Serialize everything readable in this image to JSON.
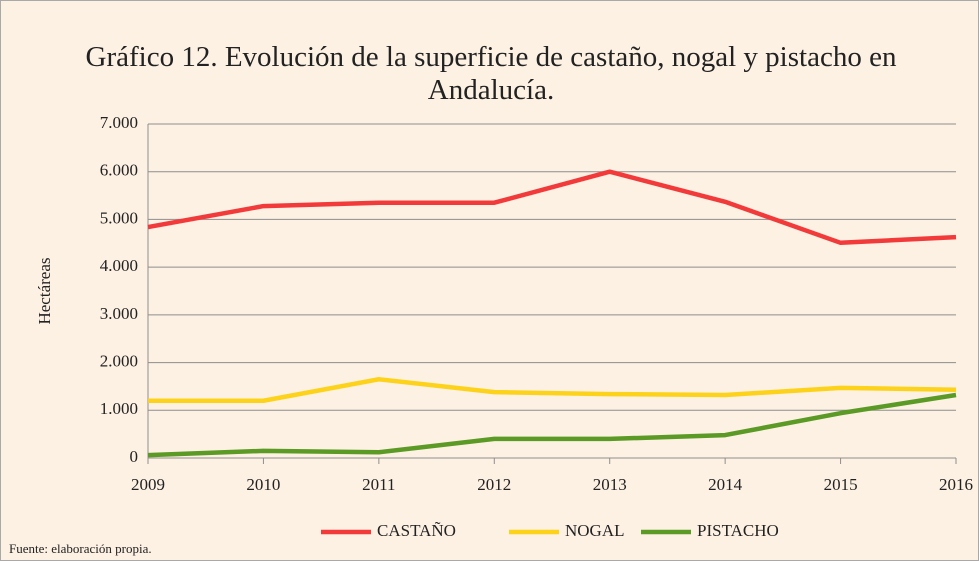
{
  "chart_data": {
    "type": "line",
    "title": "Gráfico 12. Evolución de la superficie de castaño, nogal y pistacho en Andalucía.",
    "ylabel": "Hectáreas",
    "source": "Fuente: elaboración propia.",
    "x": [
      2009,
      2010,
      2011,
      2012,
      2013,
      2014,
      2015,
      2016
    ],
    "xlim": [
      2009,
      2016
    ],
    "xticks": [
      2009,
      2010,
      2011,
      2012,
      2013,
      2014,
      2015,
      2016
    ],
    "ylim": [
      0,
      7000
    ],
    "yticks": [
      0,
      {
        "value": 1000,
        "label": "1.000"
      },
      {
        "value": 2000,
        "label": "2.000"
      },
      {
        "value": 3000,
        "label": "3.000"
      },
      {
        "value": 4000,
        "label": "4.000"
      },
      {
        "value": 5000,
        "label": "5.000"
      },
      {
        "value": 6000,
        "label": "6.000"
      },
      {
        "value": 7000,
        "label": "7.000"
      }
    ],
    "grid": true,
    "legend": "bottom",
    "series": [
      {
        "name": "CASTAÑO",
        "color": "#f23a3a",
        "values": [
          4840,
          5280,
          5350,
          5350,
          6000,
          5370,
          4510,
          4630
        ]
      },
      {
        "name": "NOGAL",
        "color": "#fdd21b",
        "values": [
          1200,
          1200,
          1650,
          1380,
          1340,
          1320,
          1470,
          1430
        ]
      },
      {
        "name": "PISTACHO",
        "color": "#5a9a25",
        "values": [
          60,
          150,
          120,
          400,
          400,
          480,
          940,
          1320
        ]
      }
    ]
  }
}
